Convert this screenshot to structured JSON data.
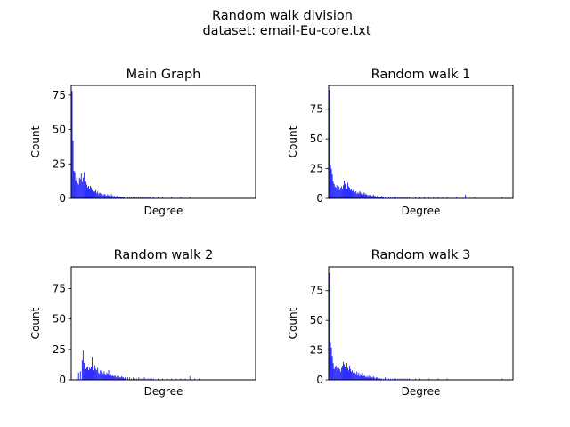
{
  "figure": {
    "title_line1": "Random walk division",
    "title_line2": "dataset: email-Eu-core.txt"
  },
  "chart_data": [
    {
      "type": "bar",
      "title": "Main Graph",
      "xlabel": "Degree",
      "ylabel": "Count",
      "xlim": [
        0,
        202
      ],
      "ylim": [
        0,
        82
      ],
      "yticks": [
        0,
        25,
        50,
        75
      ],
      "xticks_shown": false,
      "bar_color": "#0000ff",
      "series": [
        {
          "x": [
            1,
            2,
            3,
            4,
            5,
            6,
            7,
            8,
            9,
            10,
            11,
            12,
            13,
            14,
            15,
            16,
            17,
            18,
            19,
            20,
            21,
            22,
            23,
            24,
            25,
            26,
            27,
            28,
            29,
            30,
            31,
            32,
            33,
            34,
            35,
            36,
            37,
            38,
            39,
            40,
            41,
            42,
            43,
            44,
            45,
            46,
            47,
            48,
            49,
            50,
            51,
            52,
            53,
            54,
            55,
            56,
            57,
            58,
            60,
            62,
            64,
            66,
            68,
            70,
            72,
            74,
            76,
            78,
            80,
            82,
            84,
            86,
            90,
            95,
            100,
            110,
            120,
            130
          ],
          "values": [
            78,
            42,
            20,
            19,
            13,
            15,
            11,
            10,
            15,
            14,
            18,
            12,
            15,
            19,
            11,
            12,
            10,
            8,
            9,
            7,
            9,
            8,
            6,
            5,
            7,
            5,
            6,
            4,
            5,
            3,
            4,
            4,
            3,
            3,
            2,
            3,
            3,
            2,
            2,
            3,
            2,
            2,
            1,
            3,
            2,
            1,
            2,
            1,
            1,
            2,
            1,
            1,
            1,
            1,
            1,
            1,
            1,
            1,
            1,
            1,
            1,
            1,
            1,
            1,
            1,
            1,
            1,
            1,
            1,
            1,
            1,
            1,
            1,
            1,
            1,
            1,
            1,
            1
          ]
        }
      ]
    },
    {
      "type": "bar",
      "title": "Random walk 1",
      "xlabel": "Degree",
      "ylabel": "Count",
      "xlim": [
        0,
        202
      ],
      "ylim": [
        0,
        95
      ],
      "yticks": [
        0,
        25,
        50,
        75
      ],
      "xticks_shown": false,
      "bar_color": "#0000ff",
      "series": [
        {
          "x": [
            1,
            2,
            3,
            4,
            5,
            6,
            7,
            8,
            9,
            10,
            11,
            12,
            13,
            14,
            15,
            16,
            17,
            18,
            19,
            20,
            21,
            22,
            23,
            24,
            25,
            26,
            27,
            28,
            29,
            30,
            31,
            32,
            33,
            34,
            35,
            36,
            37,
            38,
            39,
            40,
            41,
            42,
            43,
            44,
            45,
            46,
            47,
            48,
            49,
            50,
            51,
            52,
            53,
            54,
            55,
            56,
            57,
            58,
            59,
            60,
            62,
            64,
            66,
            68,
            70,
            72,
            74,
            76,
            78,
            80,
            82,
            84,
            86,
            88,
            90,
            95,
            100,
            105,
            110,
            115,
            120,
            125,
            130,
            140,
            150,
            160,
            190
          ],
          "values": [
            91,
            28,
            25,
            20,
            14,
            12,
            10,
            9,
            11,
            8,
            10,
            7,
            9,
            10,
            8,
            11,
            15,
            12,
            10,
            8,
            13,
            10,
            9,
            7,
            8,
            6,
            7,
            6,
            5,
            6,
            4,
            5,
            4,
            6,
            5,
            4,
            3,
            4,
            5,
            3,
            4,
            3,
            2,
            3,
            2,
            3,
            2,
            2,
            3,
            2,
            2,
            1,
            2,
            1,
            2,
            1,
            1,
            2,
            1,
            1,
            1,
            1,
            1,
            1,
            1,
            1,
            1,
            1,
            1,
            1,
            1,
            1,
            1,
            1,
            1,
            1,
            1,
            1,
            1,
            1,
            1,
            1,
            1,
            1,
            3,
            1,
            1
          ]
        }
      ]
    },
    {
      "type": "bar",
      "title": "Random walk 2",
      "xlabel": "Degree",
      "ylabel": "Count",
      "xlim": [
        0,
        202
      ],
      "ylim": [
        0,
        93
      ],
      "yticks": [
        0,
        25,
        50,
        75
      ],
      "xticks_shown": false,
      "bar_color": "#0000ff",
      "series": [
        {
          "x": [
            8,
            10,
            12,
            13,
            14,
            15,
            16,
            17,
            18,
            19,
            20,
            21,
            22,
            23,
            24,
            25,
            26,
            27,
            28,
            29,
            30,
            31,
            32,
            33,
            34,
            35,
            36,
            37,
            38,
            39,
            40,
            41,
            42,
            43,
            44,
            45,
            46,
            47,
            48,
            49,
            50,
            51,
            52,
            53,
            54,
            55,
            56,
            57,
            58,
            59,
            60,
            62,
            64,
            66,
            68,
            70,
            72,
            74,
            76,
            78,
            80,
            82,
            84,
            86,
            88,
            90,
            95,
            100,
            105,
            110,
            115,
            120,
            125,
            130,
            135,
            140
          ],
          "values": [
            6,
            7,
            16,
            24,
            14,
            12,
            9,
            10,
            11,
            8,
            10,
            9,
            11,
            19,
            8,
            10,
            12,
            9,
            8,
            10,
            6,
            5,
            8,
            7,
            6,
            5,
            7,
            5,
            4,
            6,
            5,
            8,
            4,
            5,
            3,
            4,
            3,
            3,
            4,
            2,
            3,
            2,
            3,
            2,
            2,
            3,
            2,
            2,
            1,
            2,
            1,
            2,
            2,
            1,
            2,
            1,
            1,
            2,
            1,
            1,
            2,
            1,
            1,
            1,
            1,
            1,
            1,
            1,
            1,
            1,
            1,
            1,
            1,
            3,
            1,
            1
          ]
        }
      ]
    },
    {
      "type": "bar",
      "title": "Random walk 3",
      "xlabel": "Degree",
      "ylabel": "Count",
      "xlim": [
        0,
        202
      ],
      "ylim": [
        0,
        95
      ],
      "yticks": [
        0,
        25,
        50,
        75
      ],
      "xticks_shown": false,
      "bar_color": "#0000ff",
      "series": [
        {
          "x": [
            1,
            2,
            3,
            4,
            5,
            6,
            7,
            8,
            9,
            10,
            11,
            12,
            13,
            14,
            15,
            16,
            17,
            18,
            19,
            20,
            21,
            22,
            23,
            24,
            25,
            26,
            27,
            28,
            29,
            30,
            31,
            32,
            33,
            34,
            35,
            36,
            37,
            38,
            39,
            40,
            41,
            42,
            43,
            44,
            45,
            46,
            47,
            48,
            49,
            50,
            51,
            52,
            53,
            54,
            55,
            56,
            57,
            58,
            60,
            62,
            64,
            66,
            68,
            70,
            72,
            74,
            76,
            78,
            80,
            82,
            84,
            86,
            88,
            90,
            95,
            100,
            110,
            120,
            130,
            190
          ],
          "values": [
            90,
            31,
            27,
            20,
            14,
            9,
            11,
            12,
            10,
            8,
            10,
            9,
            7,
            10,
            12,
            15,
            13,
            11,
            9,
            14,
            10,
            8,
            12,
            9,
            7,
            8,
            6,
            10,
            6,
            5,
            7,
            4,
            6,
            3,
            5,
            4,
            6,
            3,
            4,
            3,
            2,
            3,
            2,
            4,
            2,
            3,
            2,
            2,
            3,
            2,
            1,
            2,
            2,
            1,
            2,
            1,
            1,
            1,
            1,
            2,
            1,
            1,
            1,
            1,
            1,
            1,
            1,
            1,
            1,
            1,
            1,
            1,
            1,
            1,
            1,
            1,
            1,
            1,
            1,
            1
          ]
        }
      ]
    }
  ]
}
